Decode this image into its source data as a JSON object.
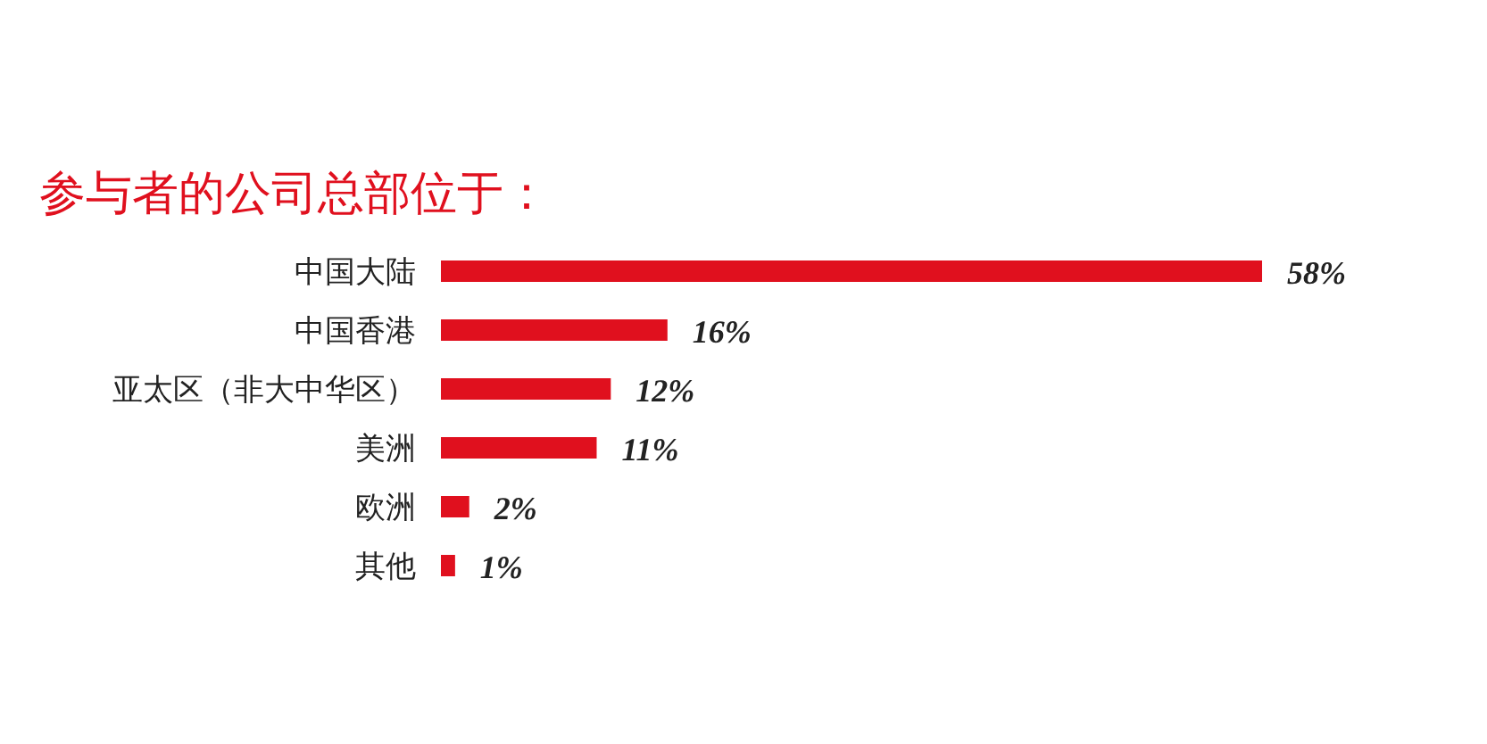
{
  "chart_data": {
    "type": "bar",
    "orientation": "horizontal",
    "title": "参与者的公司总部位于：",
    "categories": [
      "中国大陆",
      "中国香港",
      "亚太区（非大中华区）",
      "美洲",
      "欧洲",
      "其他"
    ],
    "values": [
      58,
      16,
      12,
      11,
      2,
      1
    ],
    "value_labels": [
      "58%",
      "16%",
      "12%",
      "11%",
      "2%",
      "1%"
    ],
    "color": "#e0101e"
  }
}
